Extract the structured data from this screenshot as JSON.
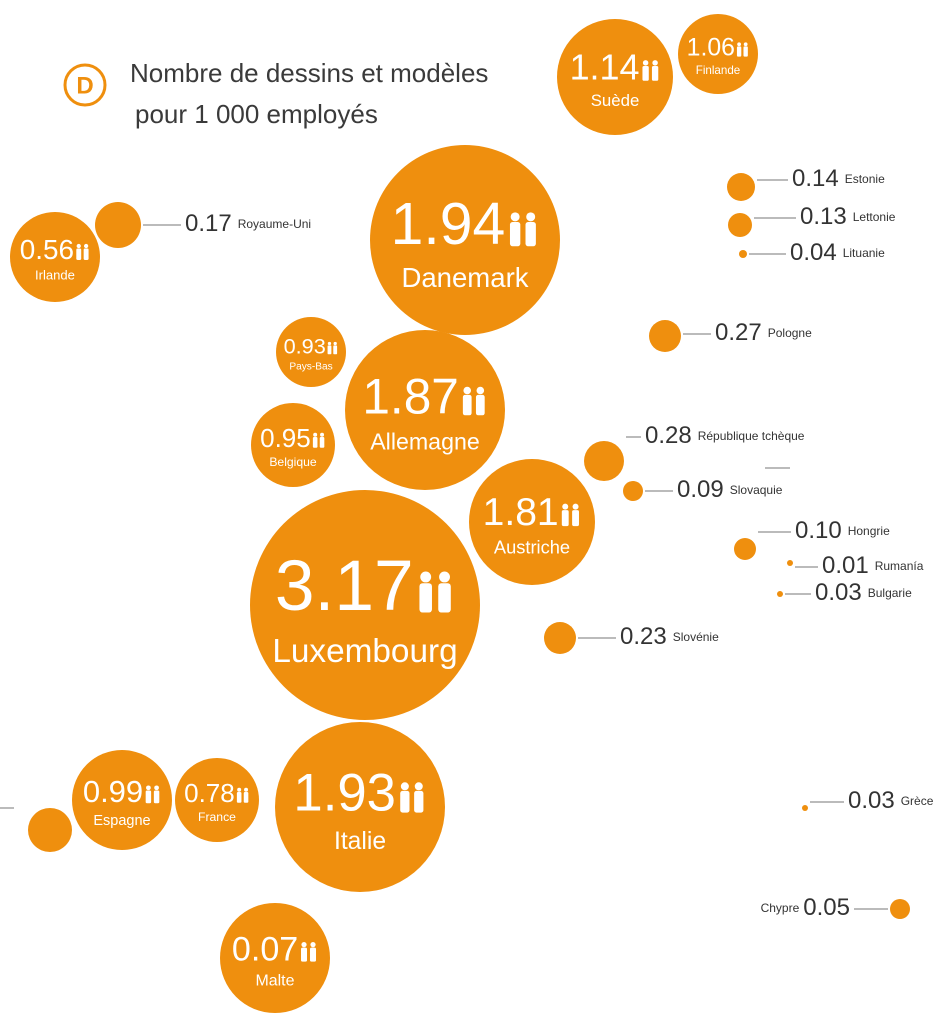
{
  "chart_data": {
    "type": "bubble",
    "badge": "D",
    "title": [
      "Nombre de dessins et modèles",
      "pour 1 000 employés"
    ],
    "color": "#ef8f0e",
    "categories": [
      "Suède",
      "Finlande",
      "Royaume-Uni",
      "Irlande",
      "Danemark",
      "Estonie",
      "Lettonie",
      "Lituanie",
      "Pologne",
      "Pays-Bas",
      "Allemagne",
      "Belgique",
      "République tchèque",
      "Slovaquie",
      "Austriche",
      "Hongrie",
      "Rumanía",
      "Bulgarie",
      "Luxembourg",
      "Slovénie",
      "Espagne",
      "France",
      "Italie",
      "Grèce",
      "Malte",
      "Chypre"
    ],
    "values": [
      1.14,
      1.06,
      0.17,
      0.56,
      1.94,
      0.14,
      0.13,
      0.04,
      0.27,
      0.93,
      1.87,
      0.95,
      0.28,
      0.09,
      1.81,
      0.1,
      0.01,
      0.03,
      3.17,
      0.23,
      0.99,
      0.78,
      1.93,
      0.03,
      0.07,
      0.05
    ],
    "value_labels": [
      "1.14",
      "1.06",
      "0.17",
      "0.56",
      "1.94",
      "0.14",
      "0.13",
      "0.04",
      "0.27",
      "0.93",
      "1.87",
      "0.95",
      "0.28",
      "0.09",
      "1.81",
      "0.10",
      "0.01",
      "0.03",
      "3.17",
      "0.23",
      "0.99",
      "0.78",
      "1.93",
      "0.03",
      "0.07",
      "0.05"
    ]
  }
}
